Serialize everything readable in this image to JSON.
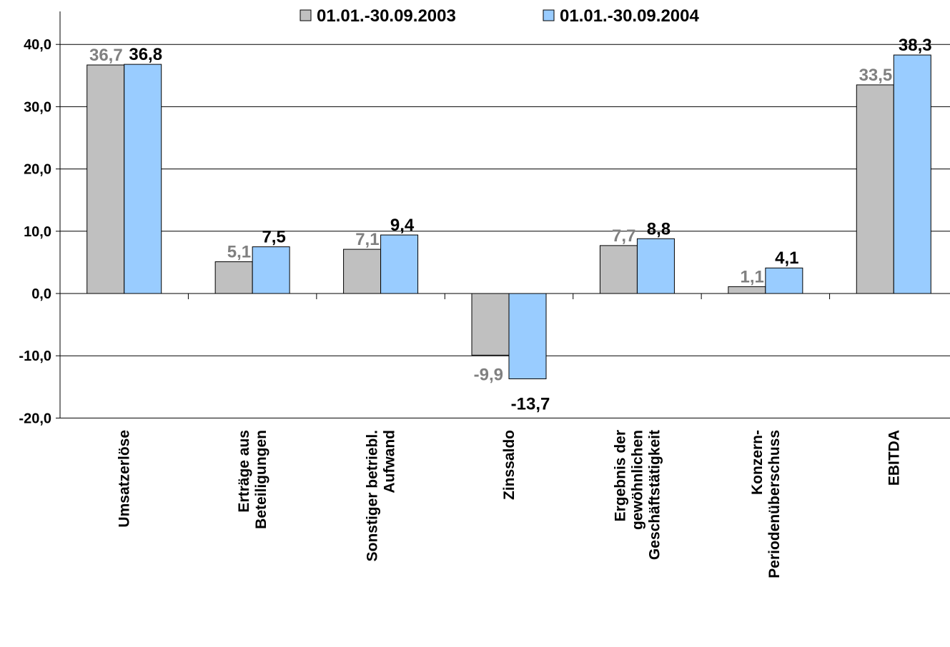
{
  "chart_data": {
    "type": "bar",
    "categories": [
      [
        "Umsatzerlöse"
      ],
      [
        "Erträge aus",
        "Beteiligungen"
      ],
      [
        "Sonstiger betriebl.",
        "Aufwand"
      ],
      [
        "Zinssaldo"
      ],
      [
        "Ergebnis der",
        "gewöhnlichen",
        "Geschäftstätigkeit"
      ],
      [
        "Konzern-",
        "Periodenüberschuss"
      ],
      [
        "EBITDA"
      ]
    ],
    "series": [
      {
        "name": "01.01.-30.09.2003",
        "values": [
          36.7,
          5.1,
          7.1,
          -9.9,
          7.7,
          1.1,
          33.5
        ],
        "labels": [
          "36,7",
          "5,1",
          "7,1",
          "-9,9",
          "7,7",
          "1,1",
          "33,5"
        ],
        "color": "#c0c0c0",
        "label_color": "#808080"
      },
      {
        "name": "01.01.-30.09.2004",
        "values": [
          36.8,
          7.5,
          9.4,
          -13.7,
          8.8,
          4.1,
          38.3
        ],
        "labels": [
          "36,8",
          "7,5",
          "9,4",
          "-13,7",
          "8,8",
          "4,1",
          "38,3"
        ],
        "color": "#99ccff",
        "label_color": "#000000"
      }
    ],
    "ylim": [
      -20,
      40
    ],
    "yticks": [
      {
        "value": 40,
        "label": "40,0"
      },
      {
        "value": 30,
        "label": "30,0"
      },
      {
        "value": 20,
        "label": "20,0"
      },
      {
        "value": 10,
        "label": "10,0"
      },
      {
        "value": 0,
        "label": "0,0"
      },
      {
        "value": -10,
        "label": "-10,0"
      },
      {
        "value": -20,
        "label": "-20,0"
      }
    ],
    "grid": true,
    "legend_position": "top",
    "title": "",
    "xlabel": "",
    "ylabel": ""
  }
}
